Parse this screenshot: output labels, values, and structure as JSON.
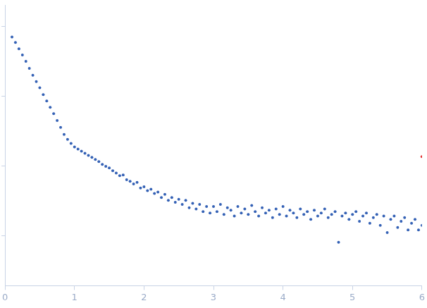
{
  "chart_data": {
    "type": "scatter",
    "log": "y",
    "grid": false,
    "tick_labels": "x",
    "xlim": [
      0,
      6
    ],
    "xticks": [
      0,
      1,
      2,
      3,
      4,
      5,
      6
    ],
    "ylim": [
      0.00019,
      2
    ],
    "yticks": [
      0.001,
      0.01,
      0.1,
      1
    ],
    "series": [
      {
        "color": "#3461b5",
        "marker": "circle",
        "x": [
          0.1,
          0.15,
          0.2,
          0.25,
          0.3,
          0.35,
          0.4,
          0.45,
          0.5,
          0.55,
          0.6,
          0.65,
          0.7,
          0.75,
          0.8,
          0.85,
          0.9,
          0.95,
          1.0,
          1.05,
          1.1,
          1.15,
          1.2,
          1.25,
          1.3,
          1.35,
          1.4,
          1.45,
          1.5,
          1.55,
          1.6,
          1.65,
          1.7,
          1.75,
          1.8,
          1.85,
          1.9,
          1.95,
          2.0,
          2.05,
          2.1,
          2.15,
          2.2,
          2.25,
          2.3,
          2.35,
          2.4,
          2.45,
          2.5,
          2.55,
          2.6,
          2.65,
          2.7,
          2.75,
          2.8,
          2.85,
          2.9,
          2.95,
          3.0,
          3.05,
          3.1,
          3.15,
          3.2,
          3.25,
          3.3,
          3.35,
          3.4,
          3.45,
          3.5,
          3.55,
          3.6,
          3.65,
          3.7,
          3.75,
          3.8,
          3.85,
          3.9,
          3.95,
          4.0,
          4.05,
          4.1,
          4.15,
          4.2,
          4.25,
          4.3,
          4.35,
          4.4,
          4.45,
          4.5,
          4.55,
          4.6,
          4.65,
          4.7,
          4.75,
          4.8,
          4.85,
          4.9,
          4.95,
          5.0,
          5.05,
          5.1,
          5.15,
          5.2,
          5.25,
          5.3,
          5.35,
          5.4,
          5.45,
          5.5,
          5.55,
          5.6,
          5.65,
          5.7,
          5.75,
          5.8,
          5.85,
          5.9,
          5.95,
          6.0
        ],
        "values": [
          0.708,
          0.589,
          0.479,
          0.389,
          0.316,
          0.251,
          0.2,
          0.162,
          0.132,
          0.105,
          0.0851,
          0.0692,
          0.0562,
          0.0447,
          0.0355,
          0.0282,
          0.024,
          0.0209,
          0.0186,
          0.0174,
          0.0162,
          0.0151,
          0.0141,
          0.0132,
          0.0123,
          0.0115,
          0.0105,
          0.0098,
          0.0093,
          0.0085,
          0.0079,
          0.0072,
          0.0074,
          0.0063,
          0.006,
          0.0055,
          0.0058,
          0.0048,
          0.005,
          0.0044,
          0.0046,
          0.004,
          0.0042,
          0.0035,
          0.0039,
          0.0032,
          0.0035,
          0.003,
          0.0033,
          0.0028,
          0.0032,
          0.0025,
          0.0029,
          0.0024,
          0.0028,
          0.0022,
          0.0026,
          0.0021,
          0.0026,
          0.0022,
          0.0028,
          0.002,
          0.0025,
          0.0023,
          0.0019,
          0.0026,
          0.0021,
          0.0024,
          0.002,
          0.0027,
          0.0022,
          0.0019,
          0.0025,
          0.0021,
          0.0023,
          0.0018,
          0.0024,
          0.002,
          0.0026,
          0.0019,
          0.0023,
          0.0021,
          0.0018,
          0.0024,
          0.002,
          0.0022,
          0.0017,
          0.0023,
          0.0019,
          0.0021,
          0.0024,
          0.0018,
          0.002,
          0.0022,
          0.0008,
          0.0019,
          0.0021,
          0.0017,
          0.002,
          0.0022,
          0.0016,
          0.0019,
          0.0021,
          0.0015,
          0.0018,
          0.002,
          0.0014,
          0.0019,
          0.0011,
          0.0017,
          0.0019,
          0.0013,
          0.0016,
          0.0018,
          0.0012,
          0.0015,
          0.0017,
          0.0012,
          0.0014
        ]
      },
      {
        "color": "#e02020",
        "marker": "circle",
        "x": [
          6.0
        ],
        "values": [
          0.0135
        ]
      }
    ]
  }
}
